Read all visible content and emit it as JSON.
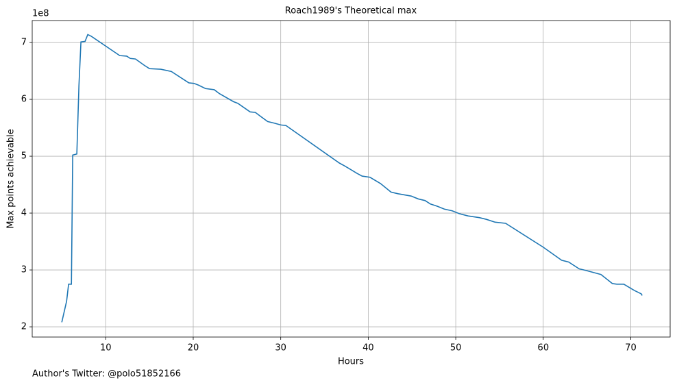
{
  "chart_data": {
    "type": "line",
    "title": "Roach1989's Theoretical max",
    "x_label": "Hours",
    "y_label": "Max points achievable",
    "y_offset_label": "1e8",
    "footer": "Author's Twitter: @polo51852166",
    "x": [
      4.98,
      5.53,
      5.76,
      6.08,
      6.23,
      6.7,
      6.94,
      7.17,
      7.64,
      7.95,
      8.35,
      11.6,
      12.4,
      12.8,
      13.4,
      14.4,
      15.0,
      16.3,
      17.5,
      19.5,
      20.1,
      20.6,
      21.4,
      22.4,
      23.0,
      24.6,
      25.1,
      26.5,
      27.1,
      28.5,
      29.3,
      30.0,
      30.6,
      36.7,
      37.3,
      38.7,
      39.3,
      40.2,
      41.4,
      42.6,
      43.4,
      44.9,
      45.7,
      46.5,
      47.1,
      47.9,
      48.7,
      49.6,
      50.4,
      51.4,
      52.7,
      53.5,
      54.5,
      55.7,
      60.0,
      62.1,
      62.9,
      64.1,
      64.9,
      66.1,
      66.6,
      67.9,
      68.4,
      69.2,
      70.4,
      71.2,
      71.3
    ],
    "series": [
      {
        "name": "Max points achievable",
        "color": "#1f77b4",
        "values": [
          2.08,
          2.45,
          2.75,
          2.75,
          5.02,
          5.04,
          6.24,
          7.01,
          7.02,
          7.14,
          7.11,
          6.77,
          6.76,
          6.72,
          6.71,
          6.6,
          6.54,
          6.53,
          6.49,
          6.29,
          6.28,
          6.25,
          6.19,
          6.17,
          6.1,
          5.96,
          5.93,
          5.78,
          5.77,
          5.61,
          5.58,
          5.55,
          5.54,
          4.88,
          4.83,
          4.7,
          4.65,
          4.63,
          4.52,
          4.37,
          4.34,
          4.3,
          4.25,
          4.22,
          4.16,
          4.12,
          4.07,
          4.04,
          3.99,
          3.95,
          3.92,
          3.89,
          3.84,
          3.82,
          3.4,
          3.17,
          3.14,
          3.02,
          2.99,
          2.94,
          2.92,
          2.76,
          2.75,
          2.75,
          2.64,
          2.58,
          2.55
        ]
      }
    ],
    "xlim": [
      1.6,
      74.5
    ],
    "xticks": [
      10,
      20,
      30,
      40,
      50,
      60,
      70
    ],
    "ylim": [
      1.82,
      7.386
    ],
    "yticks": [
      2,
      3,
      4,
      5,
      6,
      7
    ],
    "grid": true
  }
}
